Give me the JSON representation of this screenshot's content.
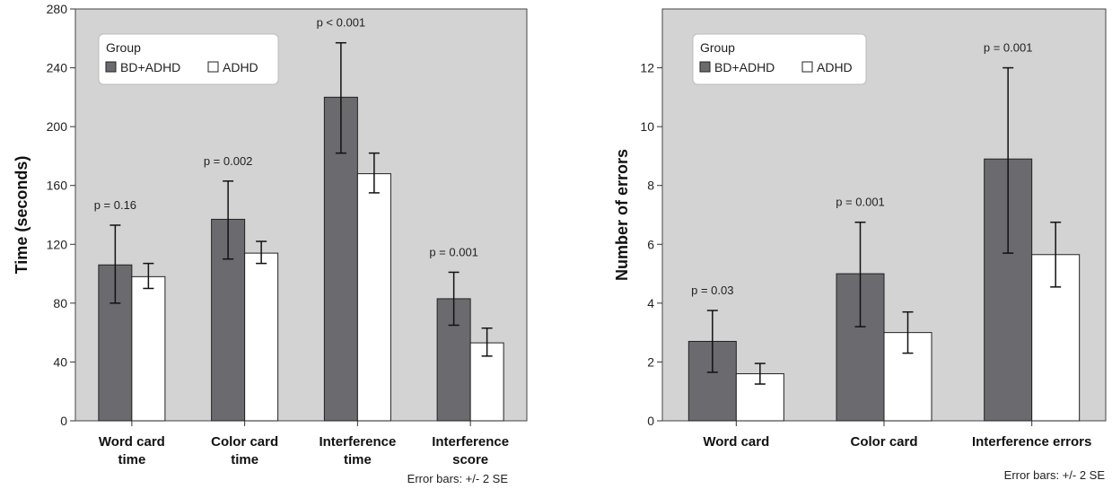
{
  "chart_data": [
    {
      "type": "bar",
      "ylabel": "Time (seconds)",
      "ylim": [
        0,
        280
      ],
      "yticks": [
        0,
        40,
        80,
        120,
        160,
        200,
        240,
        280
      ],
      "categories": [
        [
          "Word card",
          "time"
        ],
        [
          "Color card",
          "time"
        ],
        [
          "Interference",
          "time"
        ],
        [
          "Interference",
          "score"
        ]
      ],
      "legend": {
        "title": "Group",
        "position": "top-left"
      },
      "series": [
        {
          "name": "BD+ADHD",
          "color": "#6b6b6f",
          "values": [
            106,
            137,
            220,
            83
          ],
          "err_low": [
            80,
            110,
            182,
            65
          ],
          "err_high": [
            133,
            163,
            257,
            101
          ]
        },
        {
          "name": "ADHD",
          "color": "#ffffff",
          "values": [
            98,
            114,
            168,
            53
          ],
          "err_low": [
            90,
            107,
            155,
            44
          ],
          "err_high": [
            107,
            122,
            182,
            63
          ]
        }
      ],
      "annotations": [
        "p = 0.16",
        "p = 0.002",
        "p < 0.001",
        "p = 0.001"
      ],
      "footnote": "Error bars: +/- 2 SE",
      "grid": false,
      "background": "#d3d3d3"
    },
    {
      "type": "bar",
      "ylabel": "Number of errors",
      "ylim": [
        0,
        14
      ],
      "yticks": [
        0,
        2,
        4,
        6,
        8,
        10,
        12
      ],
      "categories": [
        [
          "Word card"
        ],
        [
          "Color card"
        ],
        [
          "Interference errors"
        ]
      ],
      "legend": {
        "title": "Group",
        "position": "top-left"
      },
      "series": [
        {
          "name": "BD+ADHD",
          "color": "#6b6b6f",
          "values": [
            2.7,
            5.0,
            8.9
          ],
          "err_low": [
            1.65,
            3.2,
            5.7
          ],
          "err_high": [
            3.75,
            6.75,
            12.0
          ]
        },
        {
          "name": "ADHD",
          "color": "#ffffff",
          "values": [
            1.6,
            3.0,
            5.65
          ],
          "err_low": [
            1.25,
            2.3,
            4.55
          ],
          "err_high": [
            1.95,
            3.7,
            6.75
          ]
        }
      ],
      "annotations": [
        "p = 0.03",
        "p = 0.001",
        "p = 0.001"
      ],
      "footnote": "Error bars: +/- 2 SE",
      "grid": false,
      "background": "#d3d3d3"
    }
  ]
}
